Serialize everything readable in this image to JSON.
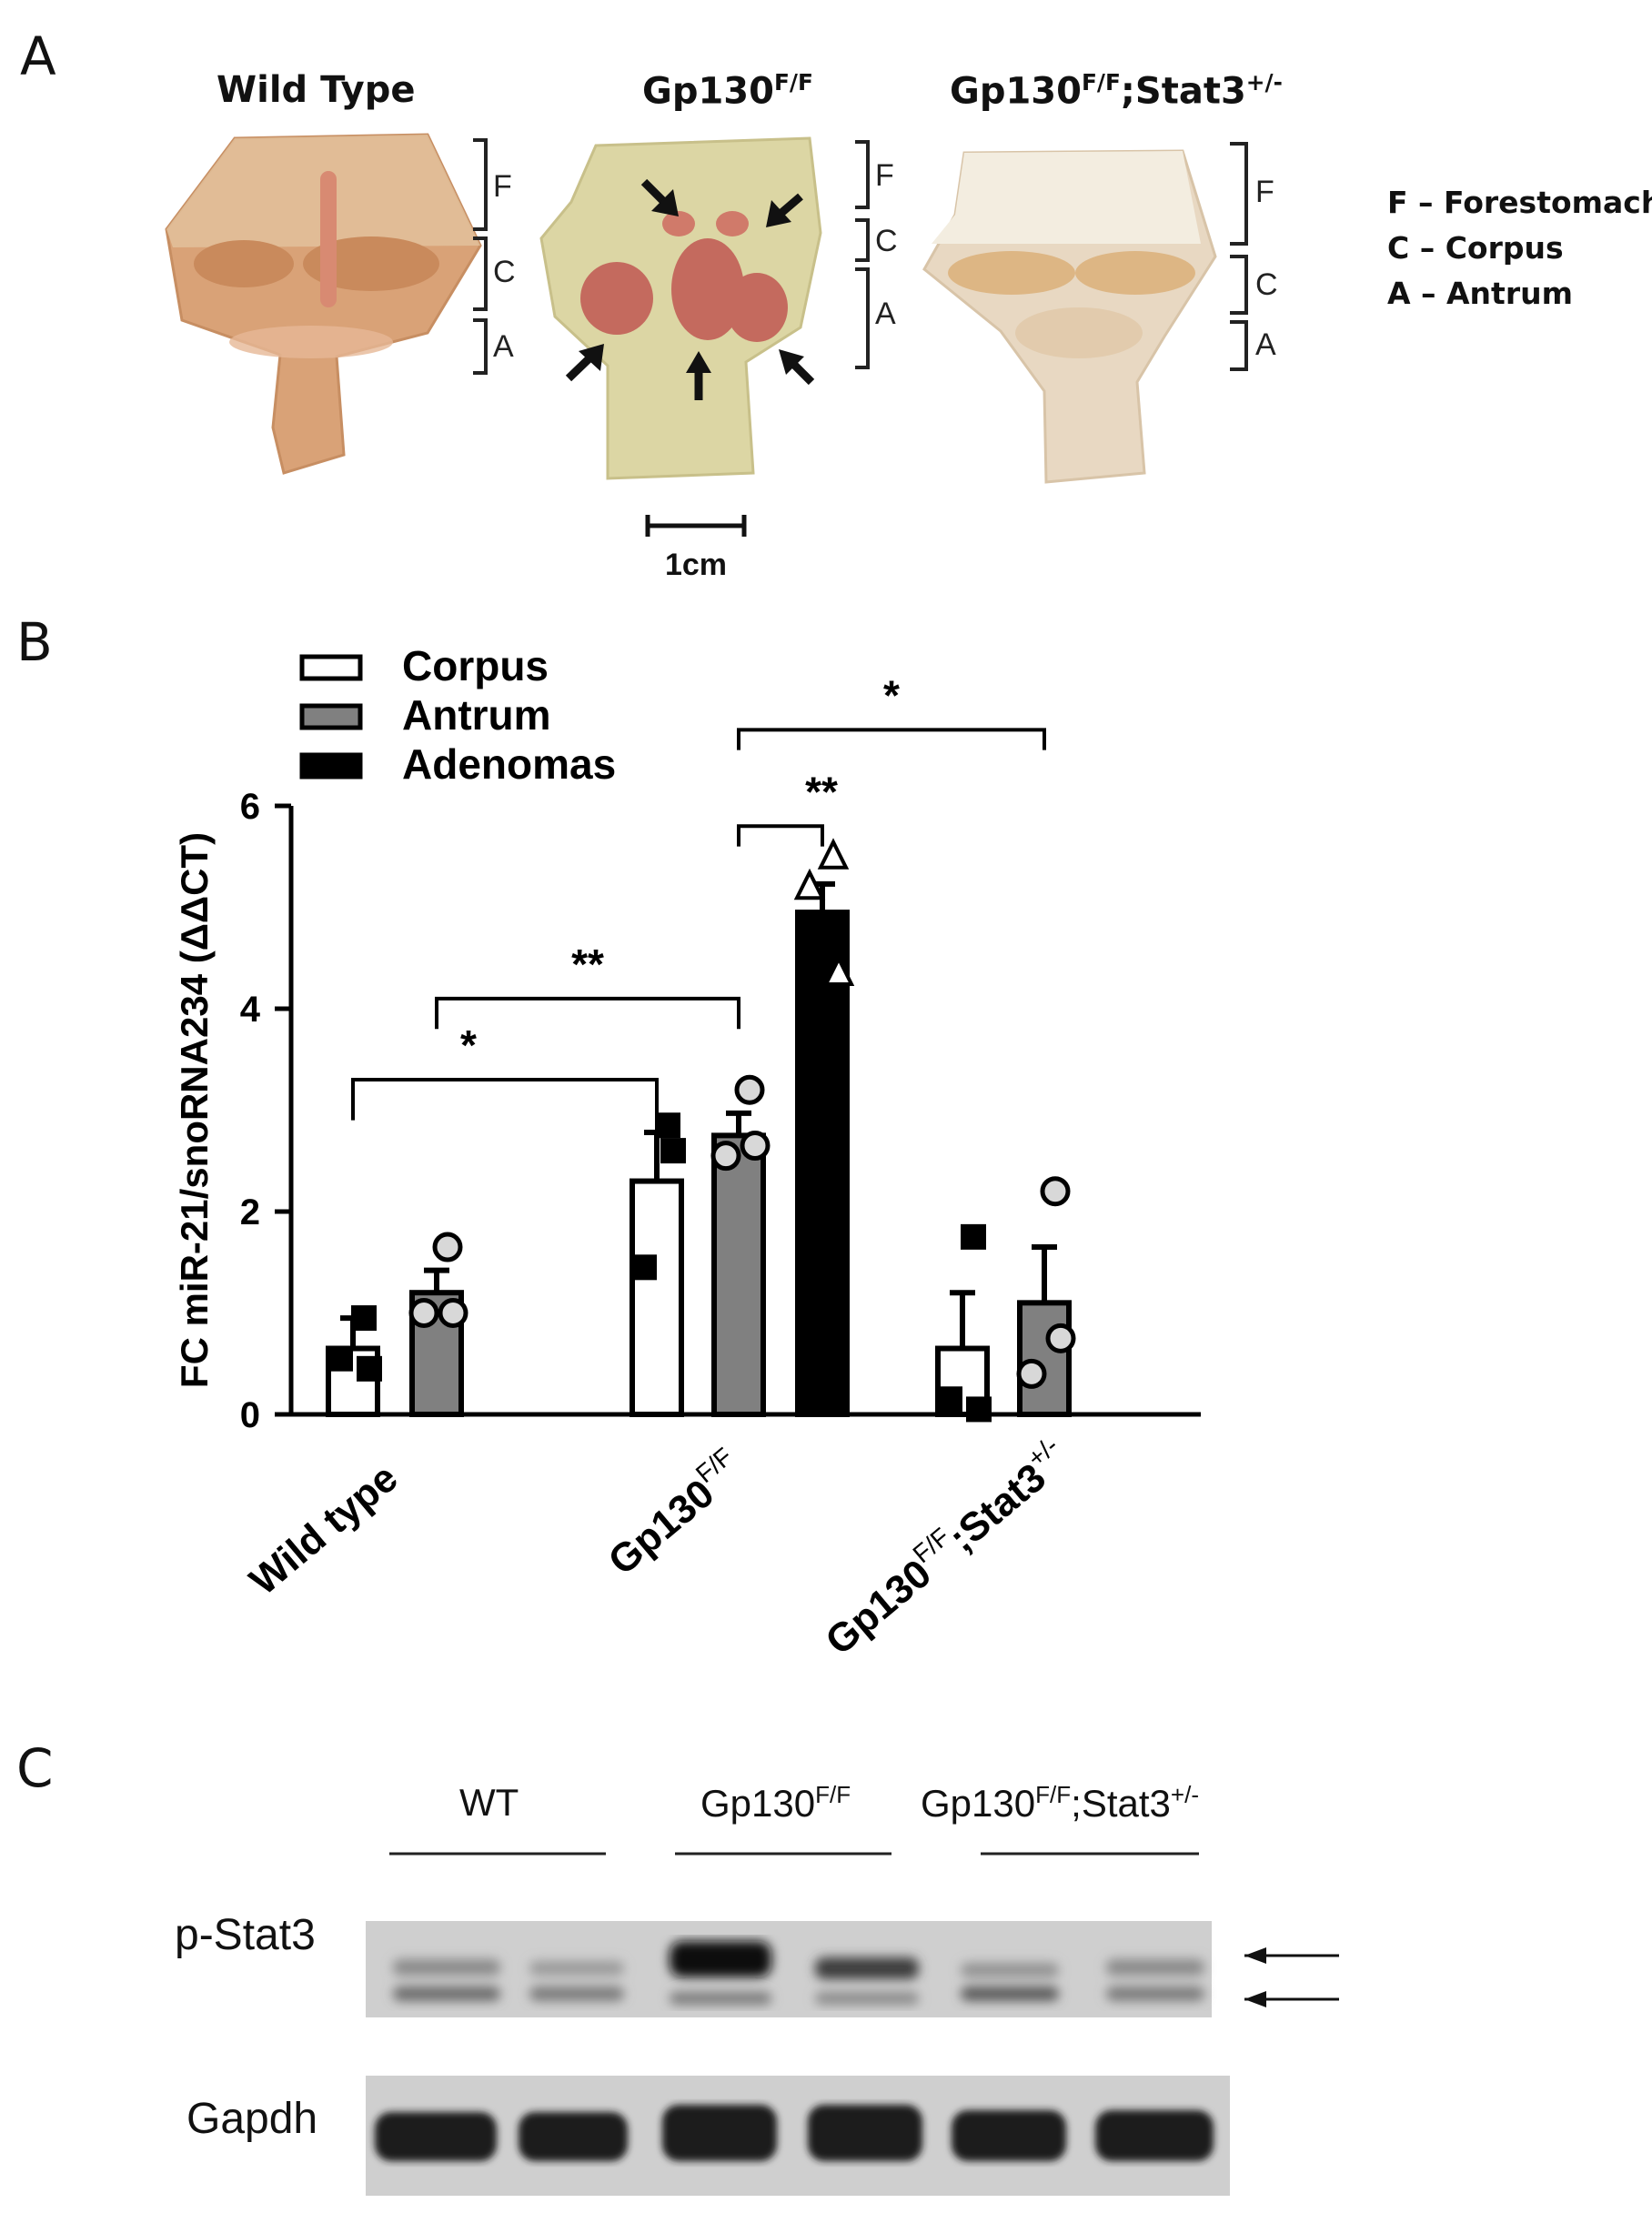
{
  "panels": {
    "a": {
      "letter": "A"
    },
    "b": {
      "letter": "B"
    },
    "c": {
      "letter": "C"
    }
  },
  "panel_a": {
    "titles": {
      "wild_type": "Wild Type",
      "gp130_base": "Gp130",
      "gp130_sup": "F/F",
      "stat3_suffix": ";Stat3",
      "stat3_sup": "+/-"
    },
    "region_letters": {
      "f": "F",
      "c": "C",
      "a": "A"
    },
    "scale_bar_label": "1cm",
    "legend": [
      "F – Forestomach",
      "C – Corpus",
      "A – Antrum"
    ],
    "colors": {
      "wild_type_tissue": "#d9a277",
      "gp130_tissue": "#dcd6a4",
      "adenoma": "#c46a5e",
      "stat3_tissue": "#e8d8c2"
    }
  },
  "chart_data": {
    "type": "bar",
    "ylabel": "FC miR-21/snoRNA234 (ΔΔCT)",
    "ylim": [
      0,
      6
    ],
    "yticks": [
      "0",
      "2",
      "4",
      "6"
    ],
    "categories": [
      {
        "base": "Wild type",
        "sup": ""
      },
      {
        "base": "Gp130",
        "sup": "F/F"
      },
      {
        "base": "Gp130",
        "sup": "F/F",
        "suffix": ";Stat3",
        "sup2": "+/-"
      }
    ],
    "series": [
      {
        "name": "Corpus",
        "color": "#ffffff",
        "marker": "square",
        "values": [
          0.65,
          2.3,
          0.65
        ],
        "errors": [
          0.3,
          0.48,
          0.55
        ],
        "points": [
          [
            0.95,
            0.55,
            0.45
          ],
          [
            2.85,
            1.45,
            2.6
          ],
          [
            1.75,
            0.15,
            0.05
          ]
        ]
      },
      {
        "name": "Antrum",
        "color": "#808080",
        "marker": "circle",
        "values": [
          1.2,
          2.75,
          1.1
        ],
        "errors": [
          0.22,
          0.22,
          0.55
        ],
        "points": [
          [
            1.65,
            1.0,
            1.0
          ],
          [
            3.2,
            2.55,
            2.65
          ],
          [
            2.2,
            0.4,
            0.75
          ]
        ]
      },
      {
        "name": "Adenomas",
        "color": "#000000",
        "marker": "triangle",
        "values": [
          null,
          4.95,
          null
        ],
        "errors": [
          null,
          0.28,
          null
        ],
        "points": [
          [],
          [
            5.5,
            5.2,
            4.35
          ],
          []
        ]
      }
    ],
    "significance": [
      {
        "from": "Wild type Corpus",
        "to": "Gp130 F/F Corpus",
        "label": "*"
      },
      {
        "from": "Wild type Antrum",
        "to": "Gp130 F/F Antrum",
        "label": "**"
      },
      {
        "from": "Gp130 F/F Antrum",
        "to": "Gp130 F/F Adenomas",
        "label": "**"
      },
      {
        "from": "Gp130 F/F Antrum",
        "to": "Gp130 F/F;Stat3 +/- Antrum",
        "label": "*"
      }
    ],
    "legend_position": "top-left"
  },
  "panel_c": {
    "groups": [
      {
        "base": "WT",
        "sup": "",
        "suffix": "",
        "sup2": ""
      },
      {
        "base": "Gp130",
        "sup": "F/F",
        "suffix": "",
        "sup2": ""
      },
      {
        "base": "Gp130",
        "sup": "F/F",
        "suffix": ";Stat3",
        "sup2": "+/-"
      }
    ],
    "row_labels": [
      "p-Stat3",
      "Gapdh"
    ]
  }
}
